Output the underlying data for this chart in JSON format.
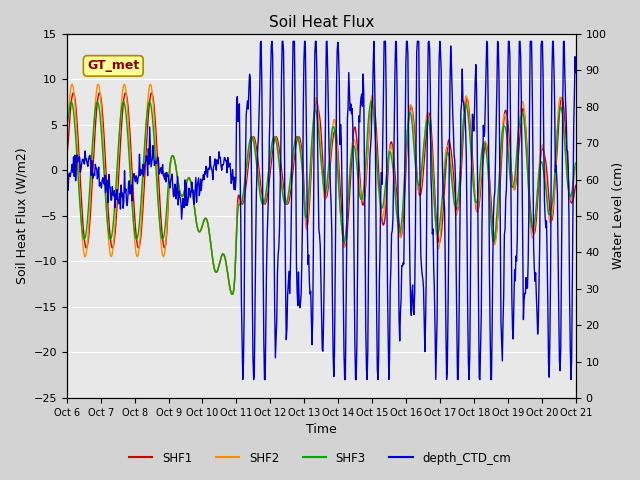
{
  "title": "Soil Heat Flux",
  "xlabel": "Time",
  "ylabel_left": "Soil Heat Flux (W/m2)",
  "ylabel_right": "Water Level (cm)",
  "ylim_left": [
    -25,
    15
  ],
  "ylim_right": [
    0,
    100
  ],
  "yticks_left": [
    -25,
    -20,
    -15,
    -10,
    -5,
    0,
    5,
    10,
    15
  ],
  "yticks_right": [
    0,
    10,
    20,
    30,
    40,
    50,
    60,
    70,
    80,
    90,
    100
  ],
  "xtick_labels": [
    "Oct 6",
    "Oct 7",
    "Oct 8",
    "Oct 9",
    "Oct 10",
    "Oct 11",
    "Oct 12",
    "Oct 13",
    "Oct 14",
    "Oct 15",
    "Oct 16",
    "Oct 17",
    "Oct 18",
    "Oct 19",
    "Oct 20",
    "Oct 21"
  ],
  "annotation_text": "GT_met",
  "annotation_color": "#8B0000",
  "annotation_bg": "#FFFF99",
  "bg_color": "#D3D3D3",
  "plot_bg": "#E8E8E8",
  "colors": {
    "SHF1": "#CC0000",
    "SHF2": "#FF8C00",
    "SHF3": "#00AA00",
    "depth_CTD_cm": "#0000CC"
  },
  "legend_labels": [
    "SHF1",
    "SHF2",
    "SHF3",
    "depth_CTD_cm"
  ],
  "n_points": 750
}
